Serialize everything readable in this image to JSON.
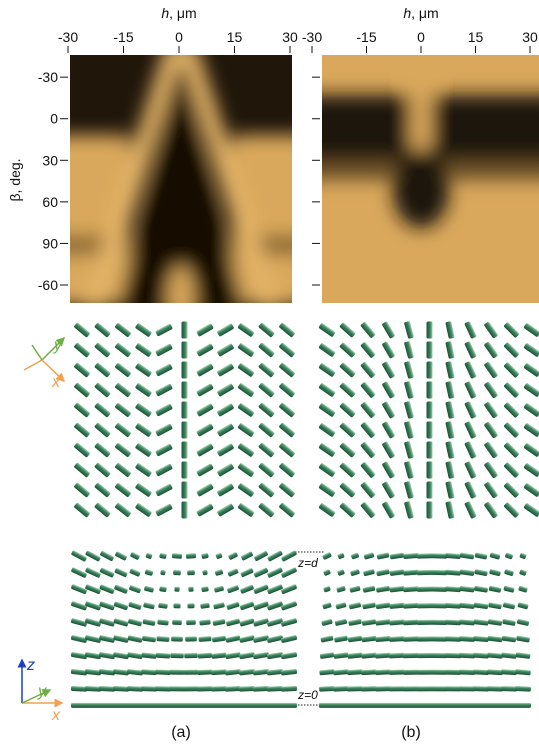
{
  "panels": [
    {
      "label": "(a)",
      "x_axis": {
        "label_symbol": "h",
        "label_unit": ", μm",
        "ticks": [
          -30,
          -15,
          0,
          15,
          30
        ],
        "lim": [
          -30,
          30
        ]
      },
      "y_axis": {
        "label": "β, deg.",
        "ticks": [
          -30,
          0,
          30,
          60,
          90,
          {
            "value": 120,
            "label": "-60"
          }
        ],
        "lim": [
          -46,
          133
        ]
      }
    },
    {
      "label": "(b)",
      "x_axis": {
        "label_symbol": "h",
        "label_unit": ", μm",
        "ticks": [
          -30,
          -15,
          0,
          15,
          30
        ],
        "lim": [
          -30,
          30
        ]
      }
    }
  ],
  "director_axes": {
    "top": {
      "x": "x",
      "y": "y"
    },
    "bottom": {
      "x": "x",
      "y": "y",
      "z": "z"
    }
  },
  "layer_labels": {
    "top": "z=d",
    "bottom": "z=0"
  }
}
